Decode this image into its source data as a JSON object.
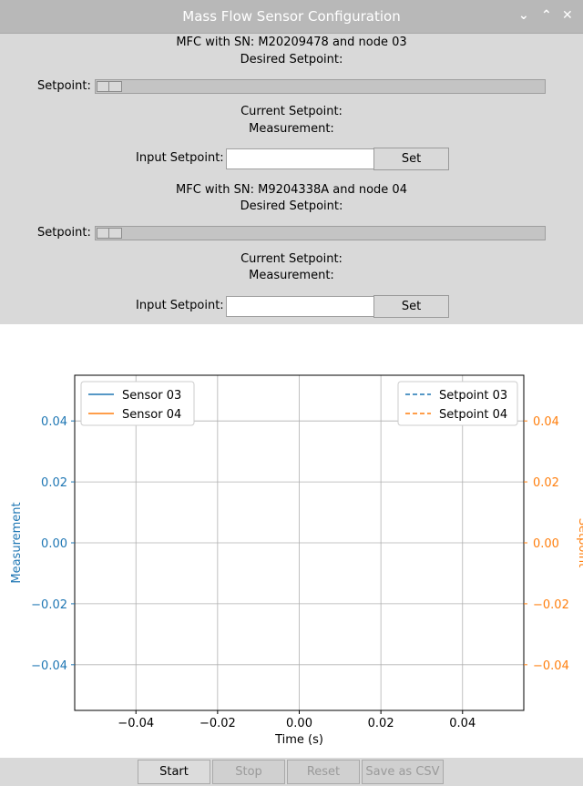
{
  "window": {
    "title": "Mass Flow Sensor Configuration"
  },
  "mfc": [
    {
      "header": "MFC with SN: M20209478 and node 03",
      "desired_setpoint_label": "Desired Setpoint:",
      "slider_label": "Setpoint:",
      "slider_value": 0,
      "current_setpoint_label": "Current Setpoint:",
      "measurement_label": "Measurement:",
      "input_label": "Input Setpoint:",
      "input_value": "",
      "set_label": "Set"
    },
    {
      "header": "MFC with SN: M9204338A and node 04",
      "desired_setpoint_label": "Desired Setpoint:",
      "slider_label": "Setpoint:",
      "slider_value": 0,
      "current_setpoint_label": "Current Setpoint:",
      "measurement_label": "Measurement:",
      "input_label": "Input Setpoint:",
      "input_value": "",
      "set_label": "Set"
    }
  ],
  "buttons": {
    "start": "Start",
    "stop": "Stop",
    "reset": "Reset",
    "save": "Save as CSV"
  },
  "colors": {
    "sensor03": "#1f77b4",
    "sensor04": "#ff7f0e",
    "left_axis": "#1f77b4",
    "right_axis": "#ff7f0e"
  },
  "chart_data": {
    "type": "line",
    "xlabel": "Time (s)",
    "ylabel": "Measurement",
    "ylabel_right": "Setpoint",
    "xlim": [
      -0.055,
      0.055
    ],
    "ylim": [
      -0.055,
      0.055
    ],
    "xticks": [
      "−0.04",
      "−0.02",
      "0.00",
      "0.02",
      "0.04"
    ],
    "yticks": [
      "0.04",
      "0.02",
      "0.00",
      "−0.02",
      "−0.04"
    ],
    "grid": true,
    "legend_left": {
      "placement": "top-left",
      "entries": [
        "Sensor 03",
        "Sensor 04"
      ]
    },
    "legend_right": {
      "placement": "top-right",
      "entries": [
        "Setpoint 03",
        "Setpoint 04"
      ]
    },
    "series": [
      {
        "name": "Sensor 03",
        "axis": "left",
        "style": "solid",
        "x": [],
        "y": []
      },
      {
        "name": "Sensor 04",
        "axis": "left",
        "style": "solid",
        "x": [],
        "y": []
      },
      {
        "name": "Setpoint 03",
        "axis": "right",
        "style": "dashed",
        "x": [],
        "y": []
      },
      {
        "name": "Setpoint 04",
        "axis": "right",
        "style": "dashed",
        "x": [],
        "y": []
      }
    ]
  }
}
